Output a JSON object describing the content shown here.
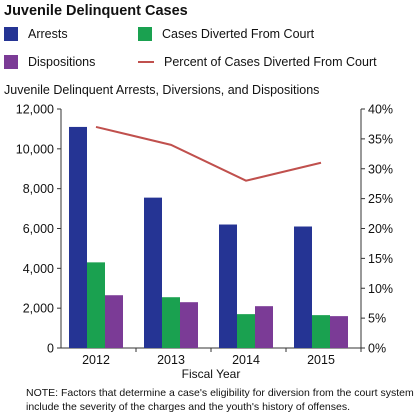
{
  "page_title": "Juvenile Delinquent Cases",
  "colors": {
    "arrests": "#253494",
    "diverted": "#1aa150",
    "dispositions": "#7b3b96",
    "percent_line": "#c0504d",
    "axis": "#333333"
  },
  "legend": [
    {
      "label": "Arrests",
      "kind": "swatch",
      "color_key": "arrests"
    },
    {
      "label": "Cases Diverted From Court",
      "kind": "swatch",
      "color_key": "diverted"
    },
    {
      "label": "Dispositions",
      "kind": "swatch",
      "color_key": "dispositions"
    },
    {
      "label": "Percent of Cases Diverted From Court",
      "kind": "line",
      "color_key": "percent_line"
    }
  ],
  "chart_data": {
    "type": "bar",
    "title": "Juvenile Delinquent Arrests, Diversions, and Dispositions",
    "xlabel": "Fiscal Year",
    "categories": [
      "2012",
      "2013",
      "2014",
      "2015"
    ],
    "series": [
      {
        "name": "Arrests",
        "type": "bar",
        "axis": "left",
        "values": [
          11100,
          7550,
          6200,
          6100
        ]
      },
      {
        "name": "Cases Diverted From Court",
        "type": "bar",
        "axis": "left",
        "values": [
          4300,
          2550,
          1700,
          1650
        ]
      },
      {
        "name": "Dispositions",
        "type": "bar",
        "axis": "left",
        "values": [
          2650,
          2300,
          2100,
          1600
        ]
      },
      {
        "name": "Percent of Cases Diverted From Court",
        "type": "line",
        "axis": "right",
        "values": [
          37,
          34,
          28,
          31
        ]
      }
    ],
    "ylim_left": [
      0,
      12000
    ],
    "yticks_left": [
      "0",
      "2,000",
      "4,000",
      "6,000",
      "8,000",
      "10,000",
      "12,000"
    ],
    "ylim_right": [
      0,
      40
    ],
    "yticks_right": [
      "0%",
      "5%",
      "10%",
      "15%",
      "20%",
      "25%",
      "30%",
      "35%",
      "40%"
    ],
    "grid": false,
    "legend_placement": "top"
  },
  "note": "NOTE: Factors that determine a case's eligibility for diversion from the court system include the severity of the charges and the youth's history of offenses."
}
